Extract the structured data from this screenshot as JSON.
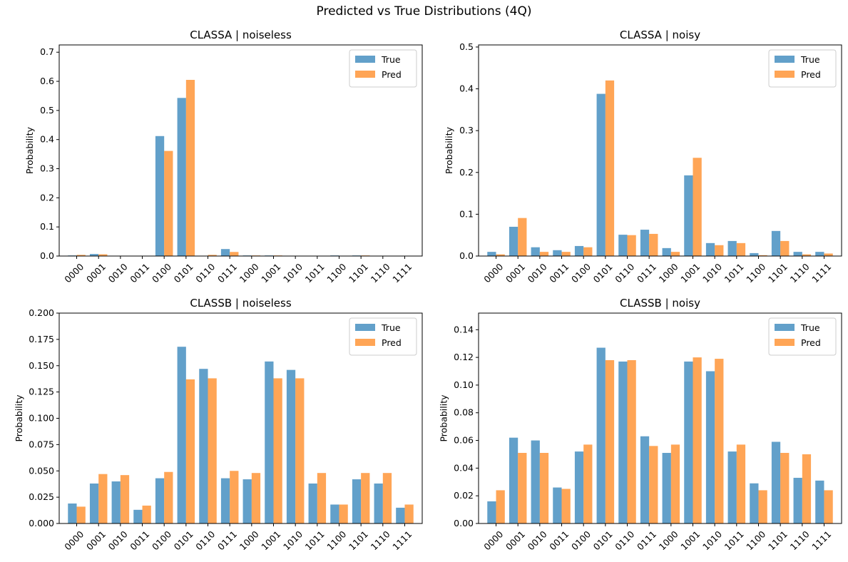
{
  "figure": {
    "suptitle": "Predicted vs True Distributions (4Q)"
  },
  "colors": {
    "true": "#1f77b4",
    "pred": "#ff7f0e"
  },
  "chart_data": [
    {
      "type": "bar",
      "title": "CLASSA | noiseless",
      "xlabel": "",
      "ylabel": "Probability",
      "categories": [
        "0000",
        "0001",
        "0010",
        "0011",
        "0100",
        "0101",
        "0110",
        "0111",
        "1000",
        "1001",
        "1010",
        "1011",
        "1100",
        "1101",
        "1110",
        "1111"
      ],
      "ylim": [
        0,
        0.725
      ],
      "yticks": [
        0.0,
        0.1,
        0.2,
        0.3,
        0.4,
        0.5,
        0.6,
        0.7
      ],
      "ytick_labels": [
        "0.0",
        "0.1",
        "0.2",
        "0.3",
        "0.4",
        "0.5",
        "0.6",
        "0.7"
      ],
      "legend": "top-right",
      "series": [
        {
          "name": "True",
          "values": [
            0.002,
            0.007,
            0.0,
            0.0,
            0.412,
            0.543,
            0.0,
            0.024,
            0.002,
            0.002,
            0.0,
            0.0,
            0.002,
            0.002,
            0.0,
            0.0
          ]
        },
        {
          "name": "Pred",
          "values": [
            0.004,
            0.006,
            0.0,
            0.0,
            0.361,
            0.605,
            0.004,
            0.014,
            0.002,
            0.002,
            0.001,
            0.001,
            0.001,
            0.002,
            0.001,
            0.001
          ]
        }
      ]
    },
    {
      "type": "bar",
      "title": "CLASSA | noisy",
      "xlabel": "",
      "ylabel": "Probability",
      "categories": [
        "0000",
        "0001",
        "0010",
        "0011",
        "0100",
        "0101",
        "0110",
        "0111",
        "1000",
        "1001",
        "1010",
        "1011",
        "1100",
        "1101",
        "1110",
        "1111"
      ],
      "ylim": [
        0,
        0.505
      ],
      "yticks": [
        0.0,
        0.1,
        0.2,
        0.3,
        0.4,
        0.5
      ],
      "ytick_labels": [
        "0.0",
        "0.1",
        "0.2",
        "0.3",
        "0.4",
        "0.5"
      ],
      "legend": "top-right",
      "series": [
        {
          "name": "True",
          "values": [
            0.01,
            0.07,
            0.021,
            0.014,
            0.024,
            0.388,
            0.051,
            0.063,
            0.019,
            0.193,
            0.031,
            0.036,
            0.007,
            0.06,
            0.01,
            0.01
          ]
        },
        {
          "name": "Pred",
          "values": [
            0.004,
            0.091,
            0.01,
            0.01,
            0.021,
            0.42,
            0.05,
            0.053,
            0.01,
            0.235,
            0.026,
            0.031,
            0.002,
            0.036,
            0.004,
            0.006
          ]
        }
      ]
    },
    {
      "type": "bar",
      "title": "CLASSB | noiseless",
      "xlabel": "",
      "ylabel": "Probability",
      "categories": [
        "0000",
        "0001",
        "0010",
        "0011",
        "0100",
        "0101",
        "0110",
        "0111",
        "1000",
        "1001",
        "1010",
        "1011",
        "1100",
        "1101",
        "1110",
        "1111"
      ],
      "ylim": [
        0,
        0.2
      ],
      "yticks": [
        0.0,
        0.025,
        0.05,
        0.075,
        0.1,
        0.125,
        0.15,
        0.175,
        0.2
      ],
      "ytick_labels": [
        "0.000",
        "0.025",
        "0.050",
        "0.075",
        "0.100",
        "0.125",
        "0.150",
        "0.175",
        "0.200"
      ],
      "legend": "top-right",
      "series": [
        {
          "name": "True",
          "values": [
            0.019,
            0.038,
            0.04,
            0.013,
            0.043,
            0.168,
            0.147,
            0.043,
            0.042,
            0.154,
            0.146,
            0.038,
            0.018,
            0.042,
            0.038,
            0.015
          ]
        },
        {
          "name": "Pred",
          "values": [
            0.016,
            0.047,
            0.046,
            0.017,
            0.049,
            0.137,
            0.138,
            0.05,
            0.048,
            0.138,
            0.138,
            0.048,
            0.018,
            0.048,
            0.048,
            0.018
          ]
        }
      ]
    },
    {
      "type": "bar",
      "title": "CLASSB | noisy",
      "xlabel": "",
      "ylabel": "Probability",
      "categories": [
        "0000",
        "0001",
        "0010",
        "0011",
        "0100",
        "0101",
        "0110",
        "0111",
        "1000",
        "1001",
        "1010",
        "1011",
        "1100",
        "1101",
        "1110",
        "1111"
      ],
      "ylim": [
        0,
        0.152
      ],
      "yticks": [
        0.0,
        0.02,
        0.04,
        0.06,
        0.08,
        0.1,
        0.12,
        0.14
      ],
      "ytick_labels": [
        "0.00",
        "0.02",
        "0.04",
        "0.06",
        "0.08",
        "0.10",
        "0.12",
        "0.14"
      ],
      "legend": "top-right",
      "series": [
        {
          "name": "True",
          "values": [
            0.016,
            0.062,
            0.06,
            0.026,
            0.052,
            0.127,
            0.117,
            0.063,
            0.051,
            0.117,
            0.11,
            0.052,
            0.029,
            0.059,
            0.033,
            0.031
          ]
        },
        {
          "name": "Pred",
          "values": [
            0.024,
            0.051,
            0.051,
            0.025,
            0.057,
            0.118,
            0.118,
            0.056,
            0.057,
            0.12,
            0.119,
            0.057,
            0.024,
            0.051,
            0.05,
            0.024
          ]
        }
      ]
    }
  ]
}
